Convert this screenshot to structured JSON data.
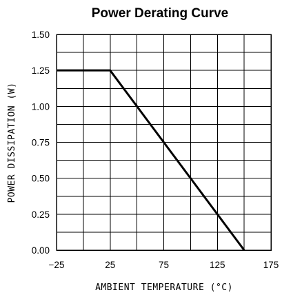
{
  "chart_data": {
    "type": "line",
    "title": "Power Derating Curve",
    "xlabel": "AMBIENT TEMPERATURE (°C)",
    "ylabel": "POWER DISSIPATION (W)",
    "xlim": [
      -25,
      175
    ],
    "ylim": [
      0,
      1.5
    ],
    "x_ticks": [
      -25,
      0,
      25,
      50,
      75,
      100,
      125,
      150,
      175
    ],
    "x_tick_labels": [
      "-25",
      "",
      "25",
      "",
      "75",
      "",
      "125",
      "",
      "175"
    ],
    "y_ticks": [
      0,
      0.125,
      0.25,
      0.375,
      0.5,
      0.625,
      0.75,
      0.875,
      1.0,
      1.125,
      1.25,
      1.375,
      1.5
    ],
    "y_tick_labels": [
      "0.00",
      "",
      "0.25",
      "",
      "0.50",
      "",
      "0.75",
      "",
      "1.00",
      "",
      "1.25",
      "",
      "1.50"
    ],
    "grid": true,
    "series": [
      {
        "x": [
          -25,
          25,
          150
        ],
        "y": [
          1.25,
          1.25,
          0
        ]
      }
    ]
  }
}
